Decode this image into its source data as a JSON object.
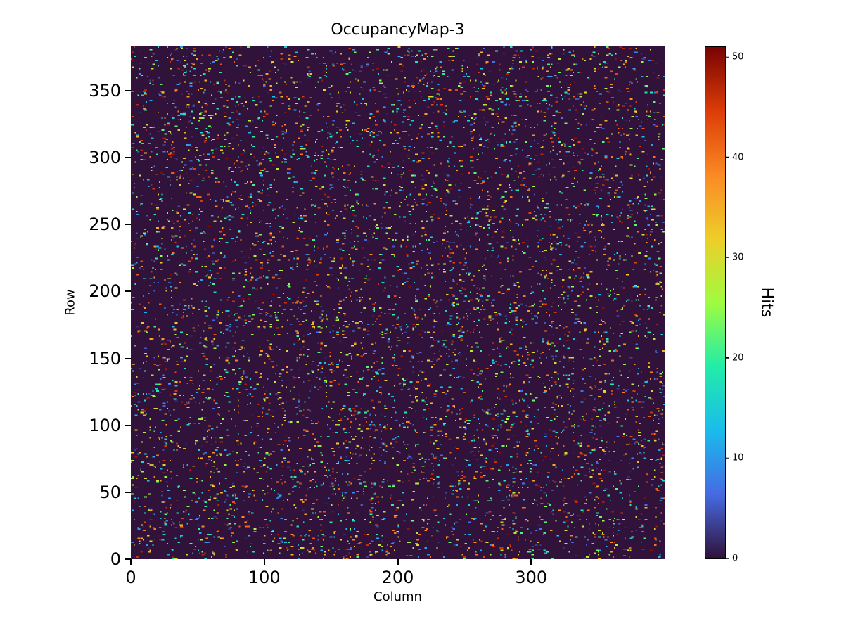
{
  "chart_data": {
    "type": "heatmap",
    "title": "OccupancyMap-3",
    "xlabel": "Column",
    "ylabel": "Row",
    "colorbar_label": "Hits",
    "xlim": [
      0,
      400
    ],
    "ylim": [
      0,
      383
    ],
    "xticks": [
      0,
      100,
      200,
      300
    ],
    "yticks": [
      0,
      50,
      100,
      150,
      200,
      250,
      300,
      350
    ],
    "colorbar_ticks": [
      0,
      10,
      20,
      30,
      40,
      50
    ],
    "vmin": 0,
    "vmax": 51,
    "grid": false,
    "legend": "none",
    "colormap": "turbo",
    "colormap_stops": [
      {
        "t": 0.0,
        "color": "#30123b"
      },
      {
        "t": 0.125,
        "color": "#466be3"
      },
      {
        "t": 0.25,
        "color": "#1abcec"
      },
      {
        "t": 0.375,
        "color": "#21eda9"
      },
      {
        "t": 0.5,
        "color": "#a0fc40"
      },
      {
        "t": 0.625,
        "color": "#edcf29"
      },
      {
        "t": 0.75,
        "color": "#fb8a25"
      },
      {
        "t": 0.875,
        "color": "#dd3d08"
      },
      {
        "t": 1.0,
        "color": "#7a0403"
      }
    ],
    "background_value": 0,
    "estimated_hit_fraction": 0.045,
    "data_description": "Sparse random occupancy: most cells have 0 hits (dark purple background); scattered single-cell hits with values roughly uniform between 1 and 51 across the full column/row range."
  }
}
